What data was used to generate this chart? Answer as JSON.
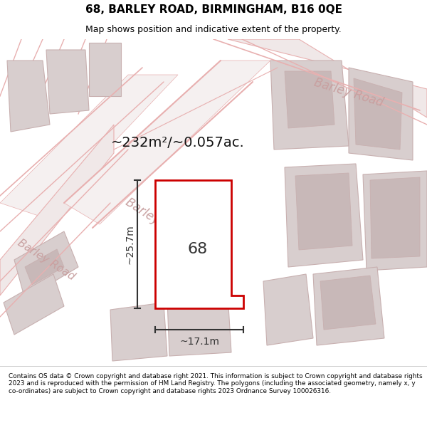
{
  "title_line1": "68, BARLEY ROAD, BIRMINGHAM, B16 0QE",
  "title_line2": "Map shows position and indicative extent of the property.",
  "area_label": "~232m²/~0.057ac.",
  "dim_vertical": "~25.7m",
  "dim_horizontal": "~17.1m",
  "property_number": "68",
  "footer_text": "Contains OS data © Crown copyright and database right 2021. This information is subject to Crown copyright and database rights 2023 and is reproduced with the permission of HM Land Registry. The polygons (including the associated geometry, namely x, y co-ordinates) are subject to Crown copyright and database rights 2023 Ordnance Survey 100026316.",
  "bg_color": "#f5f0f0",
  "map_bg": "#ffffff",
  "road_color": "#e8b0b0",
  "building_color": "#d8cece",
  "building_edge": "#c8b0b0",
  "street_label_color": "#c8a0a0",
  "property_color": "#ffffff",
  "property_edge": "#cc0000",
  "dim_color": "#333333",
  "title_color": "#000000",
  "footer_color": "#000000"
}
